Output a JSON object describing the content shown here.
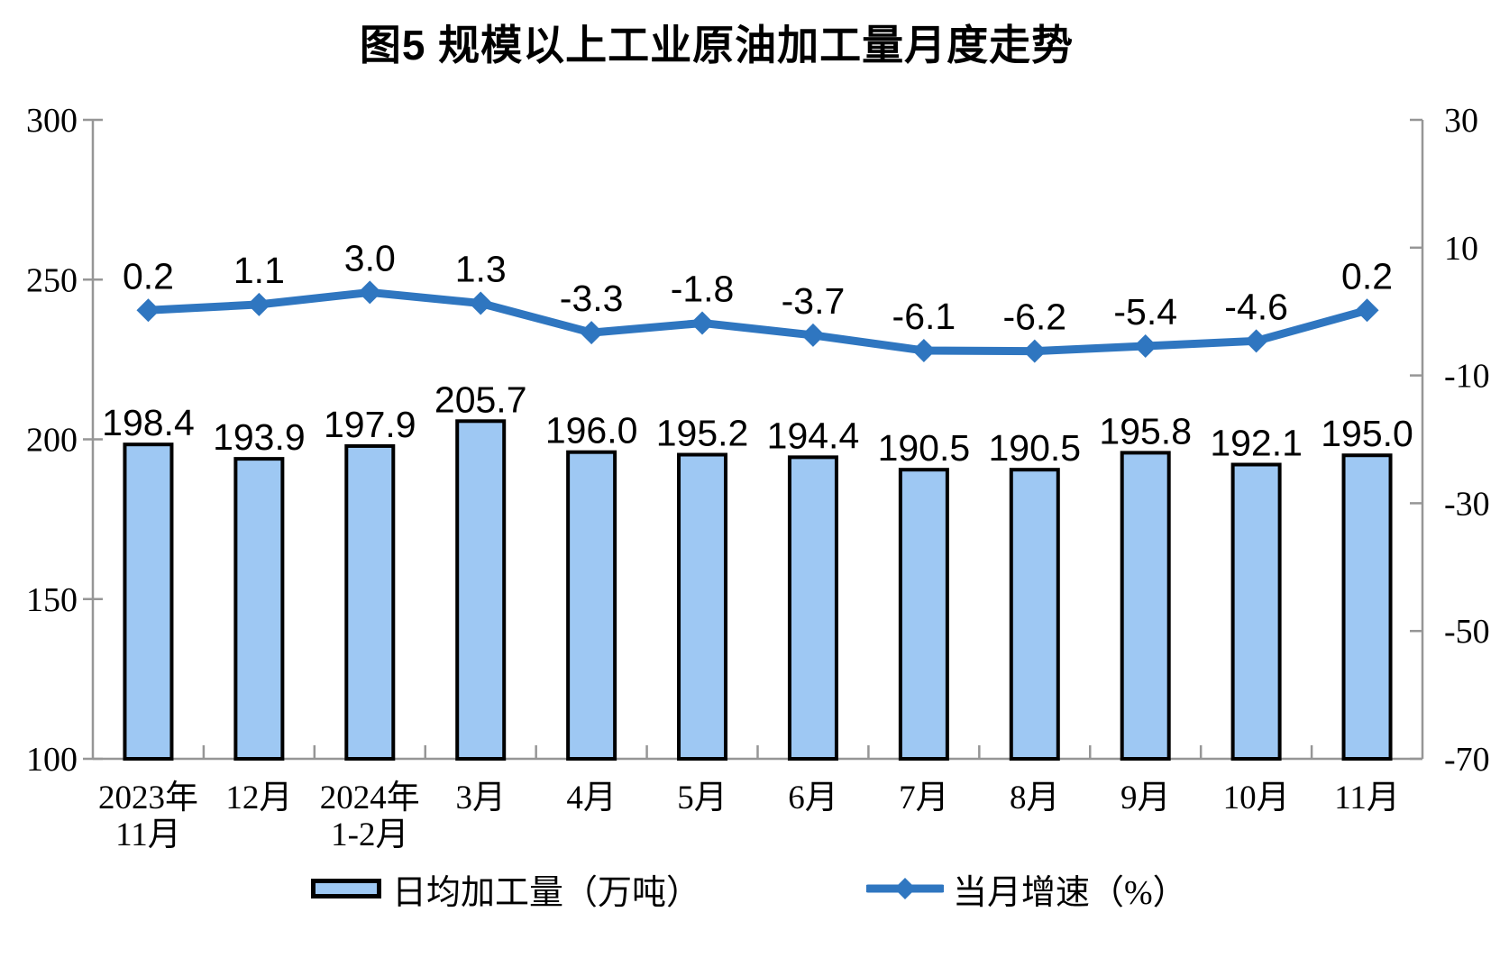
{
  "title": "图5  规模以上工业原油加工量月度走势",
  "legend": {
    "bar_label": "日均加工量（万吨）",
    "line_label": "当月增速（%）"
  },
  "colors": {
    "bar_fill": "#9EC8F3",
    "bar_border": "#000000",
    "line": "#2F76C0",
    "axis": "#969696",
    "text": "#000000",
    "background": "#ffffff"
  },
  "chart_data": {
    "type": "bar",
    "subtype": "bar-line-combo",
    "title": "图5  规模以上工业原油加工量月度走势",
    "categories": [
      [
        "2023年",
        "11月"
      ],
      [
        "12月"
      ],
      [
        "2024年",
        "1-2月"
      ],
      [
        "3月"
      ],
      [
        "4月"
      ],
      [
        "5月"
      ],
      [
        "6月"
      ],
      [
        "7月"
      ],
      [
        "8月"
      ],
      [
        "9月"
      ],
      [
        "10月"
      ],
      [
        "11月"
      ]
    ],
    "series": [
      {
        "name": "日均加工量（万吨）",
        "type": "bar",
        "axis": "left",
        "values": [
          198.4,
          193.9,
          197.9,
          205.7,
          196.0,
          195.2,
          194.4,
          190.5,
          190.5,
          195.8,
          192.1,
          195.0
        ]
      },
      {
        "name": "当月增速（%）",
        "type": "line",
        "axis": "right",
        "marker": "diamond",
        "values": [
          0.2,
          1.1,
          3.0,
          1.3,
          -3.3,
          -1.8,
          -3.7,
          -6.1,
          -6.2,
          -5.4,
          -4.6,
          0.2
        ]
      }
    ],
    "left_axis": {
      "min": 100,
      "max": 300,
      "ticks": [
        300,
        250,
        200,
        150,
        100
      ]
    },
    "right_axis": {
      "min": -70,
      "max": 30,
      "ticks": [
        30,
        10,
        -10,
        -30,
        -50,
        -70
      ]
    },
    "grid": false,
    "data_labels": true,
    "legend_position": "bottom"
  }
}
